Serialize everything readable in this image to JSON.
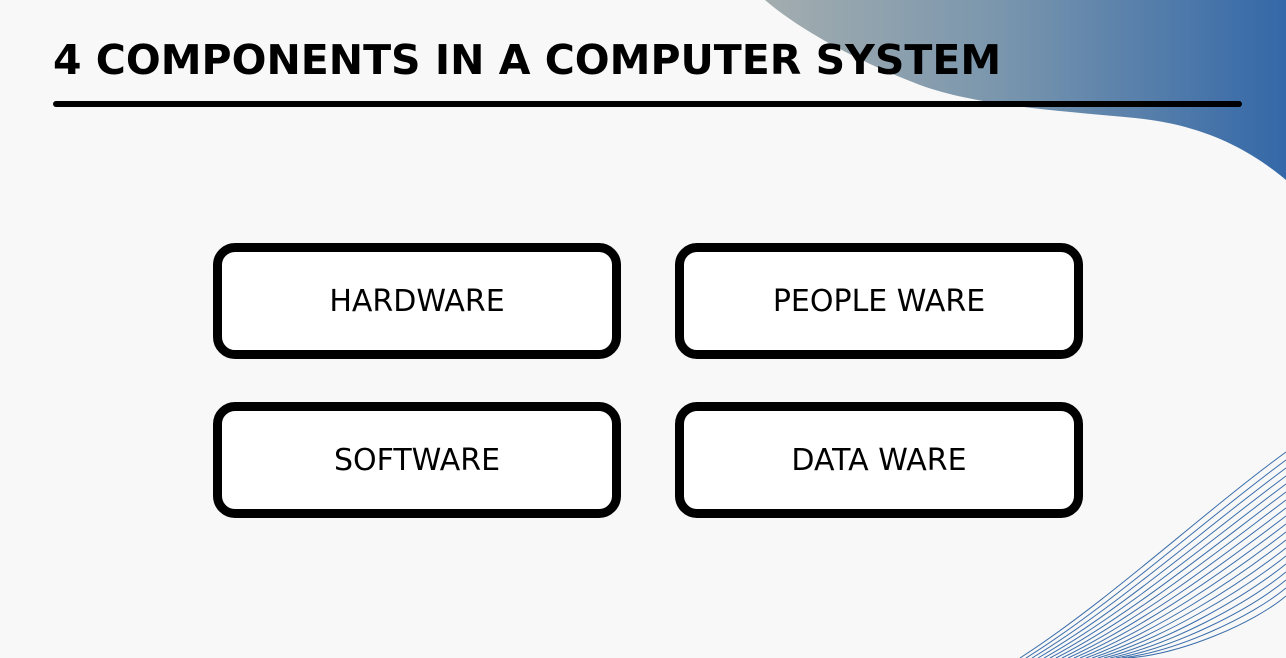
{
  "slide": {
    "title": "4 COMPONENTS IN A COMPUTER SYSTEM",
    "components": [
      {
        "label": "HARDWARE"
      },
      {
        "label": "PEOPLE WARE"
      },
      {
        "label": "SOFTWARE"
      },
      {
        "label": "DATA WARE"
      }
    ],
    "colors": {
      "background": "#f8f8f8",
      "accent_blue": "#3b6eab",
      "accent_gray": "#8fa2ab",
      "text": "#000000"
    }
  }
}
